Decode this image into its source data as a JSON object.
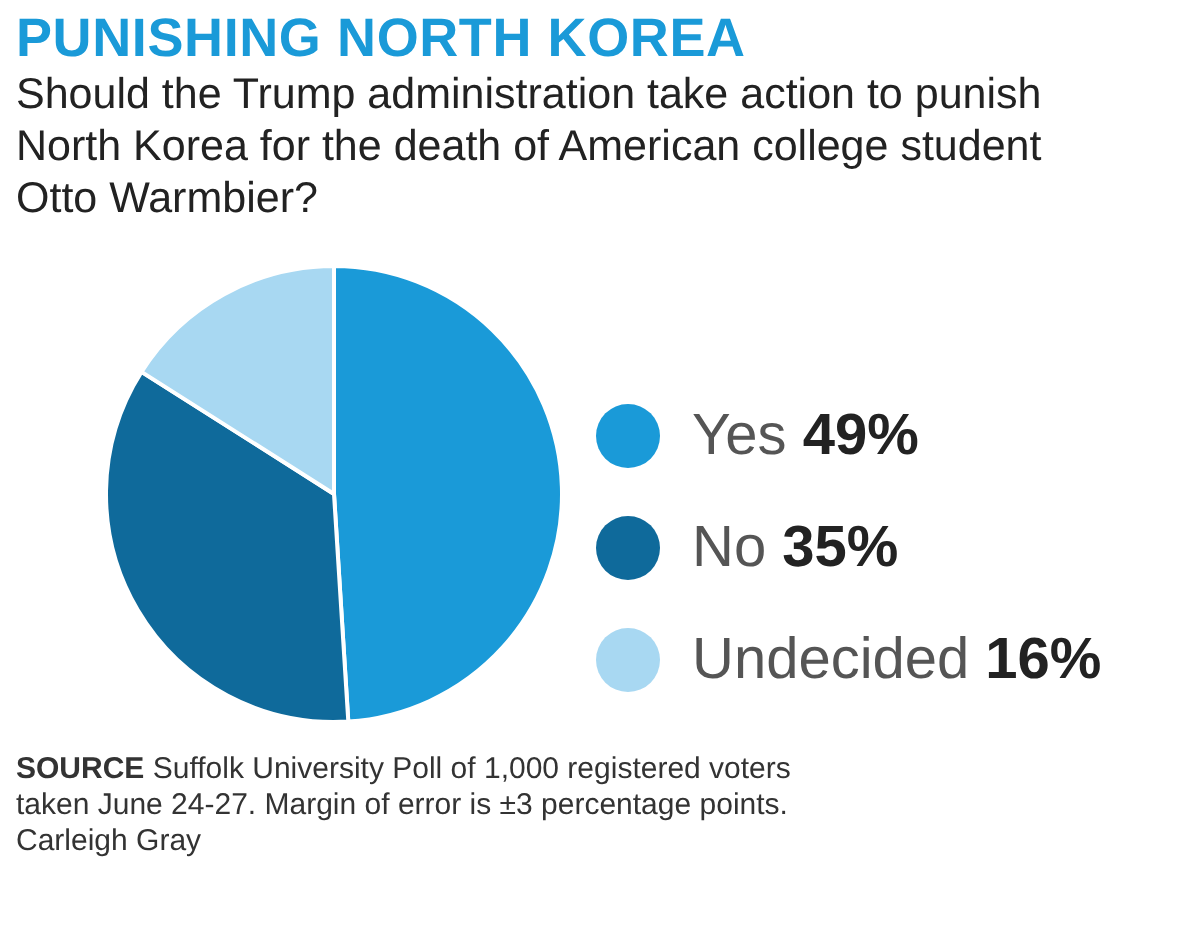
{
  "chart_data": {
    "type": "pie",
    "title": "PUNISHING NORTH KOREA",
    "subtitle": "Should the Trump administration take action to punish North Korea for the death of American college student Otto Warmbier?",
    "categories": [
      "Yes",
      "No",
      "Undecided"
    ],
    "values": [
      49,
      35,
      16
    ],
    "colors": [
      "#1a9ad8",
      "#0f6a9b",
      "#a8d8f2"
    ],
    "value_labels": [
      "49%",
      "35%",
      "16%"
    ],
    "legend": "right",
    "annotations": [
      "SOURCE Suffolk University Poll of 1,000 registered voters taken June 24-27. Margin of error is ±3 percentage points.",
      "Carleigh Gray"
    ]
  }
}
